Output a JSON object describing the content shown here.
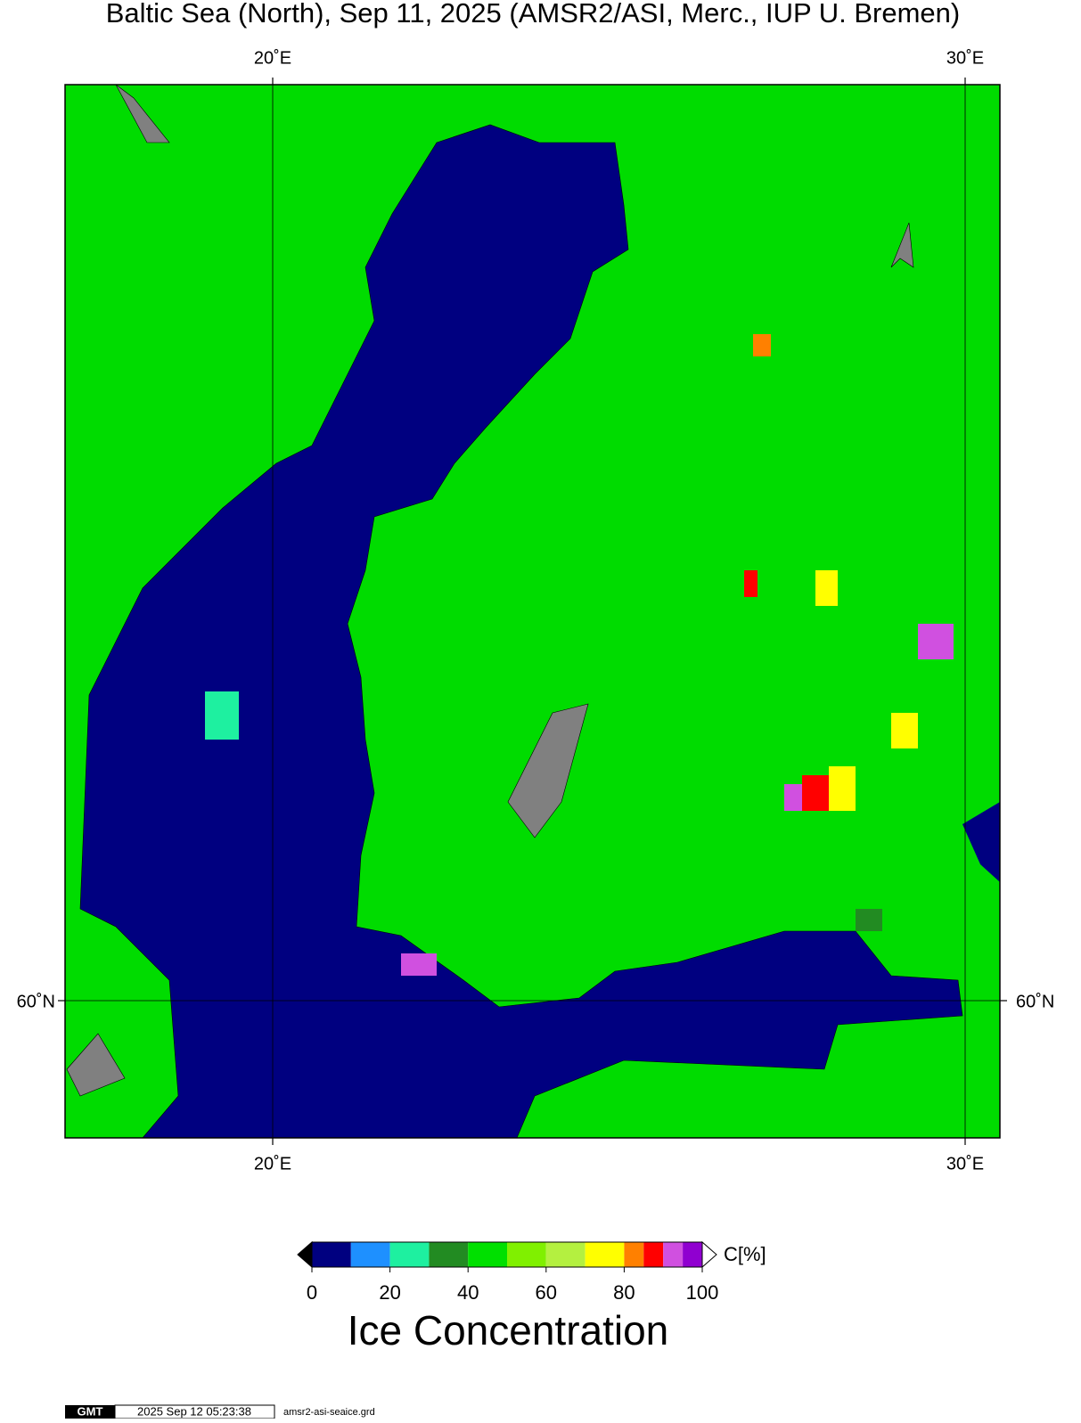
{
  "header": {
    "title": "Baltic Sea (North), Sep 11, 2025 (AMSR2/ASI, Merc., IUP U. Bremen)"
  },
  "map": {
    "top_labels": [
      "20˚E",
      "30˚E"
    ],
    "bottom_labels": [
      "20˚E",
      "30˚E"
    ],
    "left_label": "60˚N",
    "right_label": "60˚N"
  },
  "colorbar": {
    "unit": "C[%]",
    "title": "Ice Concentration",
    "ticks": [
      0,
      20,
      40,
      60,
      80,
      100
    ],
    "bounds": [
      0,
      10,
      20,
      30,
      40,
      50,
      60,
      70,
      80,
      85,
      90,
      95,
      100
    ],
    "colors": [
      "#000080",
      "#1e90ff",
      "#1ef0a0",
      "#228b22",
      "#00e000",
      "#80f000",
      "#b4f040",
      "#ffff00",
      "#ff8000",
      "#ff0000",
      "#d050e0",
      "#9000d0"
    ],
    "under_color": "#000000",
    "over_color": "#ffffff"
  },
  "footer": {
    "logo": "GMT",
    "timestamp": "2025 Sep 12 05:23:38",
    "file": "amsr2-asi-seaice.grd"
  }
}
